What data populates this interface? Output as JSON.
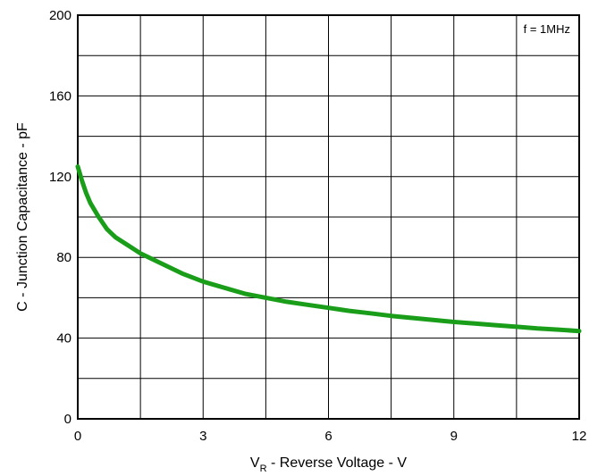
{
  "chart_data": {
    "type": "line",
    "title": "",
    "xlabel": {
      "main": "V",
      "sub": "R",
      "rest": " - Reverse Voltage - V"
    },
    "ylabel": "C - Junction Capacitance - pF",
    "xlim": [
      0,
      12
    ],
    "ylim": [
      0,
      200
    ],
    "x_ticks": [
      0,
      3,
      6,
      9,
      12
    ],
    "x_tick_labels": [
      "0",
      "3",
      "6",
      "9",
      "12"
    ],
    "y_ticks": [
      0,
      40,
      80,
      120,
      160,
      200
    ],
    "y_tick_labels": [
      "0",
      "40",
      "80",
      "120",
      "160",
      "200"
    ],
    "x_grid": [
      0,
      1.5,
      3,
      4.5,
      6,
      7.5,
      9,
      10.5,
      12
    ],
    "y_grid": [
      0,
      20,
      40,
      60,
      80,
      100,
      120,
      140,
      160,
      180,
      200
    ],
    "grid": true,
    "annotation": "f = 1MHz",
    "series_color": "#1a9e1a",
    "series": [
      {
        "x": [
          0,
          0.1,
          0.2,
          0.3,
          0.5,
          0.7,
          0.9,
          1.2,
          1.5,
          2.0,
          2.5,
          3.0,
          3.5,
          4.0,
          4.5,
          5.0,
          5.5,
          6.0,
          6.5,
          7.0,
          7.5,
          8.0,
          8.5,
          9.0,
          9.5,
          10.0,
          10.5,
          11.0,
          11.5,
          12.0
        ],
        "values": [
          125,
          118,
          112,
          107,
          100,
          94,
          90,
          86,
          82,
          77,
          72,
          68,
          65,
          62,
          60,
          58,
          56.5,
          55,
          53.5,
          52.3,
          51,
          50,
          49,
          48,
          47.2,
          46.4,
          45.6,
          44.8,
          44.2,
          43.5
        ]
      }
    ]
  }
}
